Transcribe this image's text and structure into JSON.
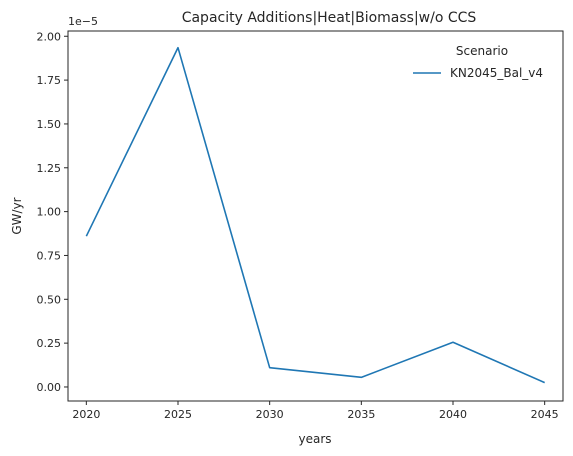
{
  "chart_data": {
    "type": "line",
    "title": "Capacity Additions|Heat|Biomass|w/o CCS",
    "xlabel": "years",
    "ylabel": "GW/yr",
    "offset_label": "1e−5",
    "x": [
      2020,
      2025,
      2030,
      2035,
      2040,
      2045
    ],
    "x_ticks": [
      "2020",
      "2025",
      "2030",
      "2035",
      "2040",
      "2045"
    ],
    "y_ticks": [
      "0.00",
      "0.25",
      "0.50",
      "0.75",
      "1.00",
      "1.25",
      "1.50",
      "1.75",
      "2.00"
    ],
    "y_tick_values": [
      0,
      0.25,
      0.5,
      0.75,
      1.0,
      1.25,
      1.5,
      1.75,
      2.0
    ],
    "ylim": [
      -0.08,
      2.03
    ],
    "xlim": [
      2019,
      2046
    ],
    "series": [
      {
        "name": "KN2045_Bal_v4",
        "color": "#1f77b4",
        "values": [
          0.86,
          1.935,
          0.11,
          0.055,
          0.255,
          0.025
        ]
      }
    ],
    "legend": {
      "title": "Scenario",
      "placement": "top-right"
    },
    "grid": false
  }
}
